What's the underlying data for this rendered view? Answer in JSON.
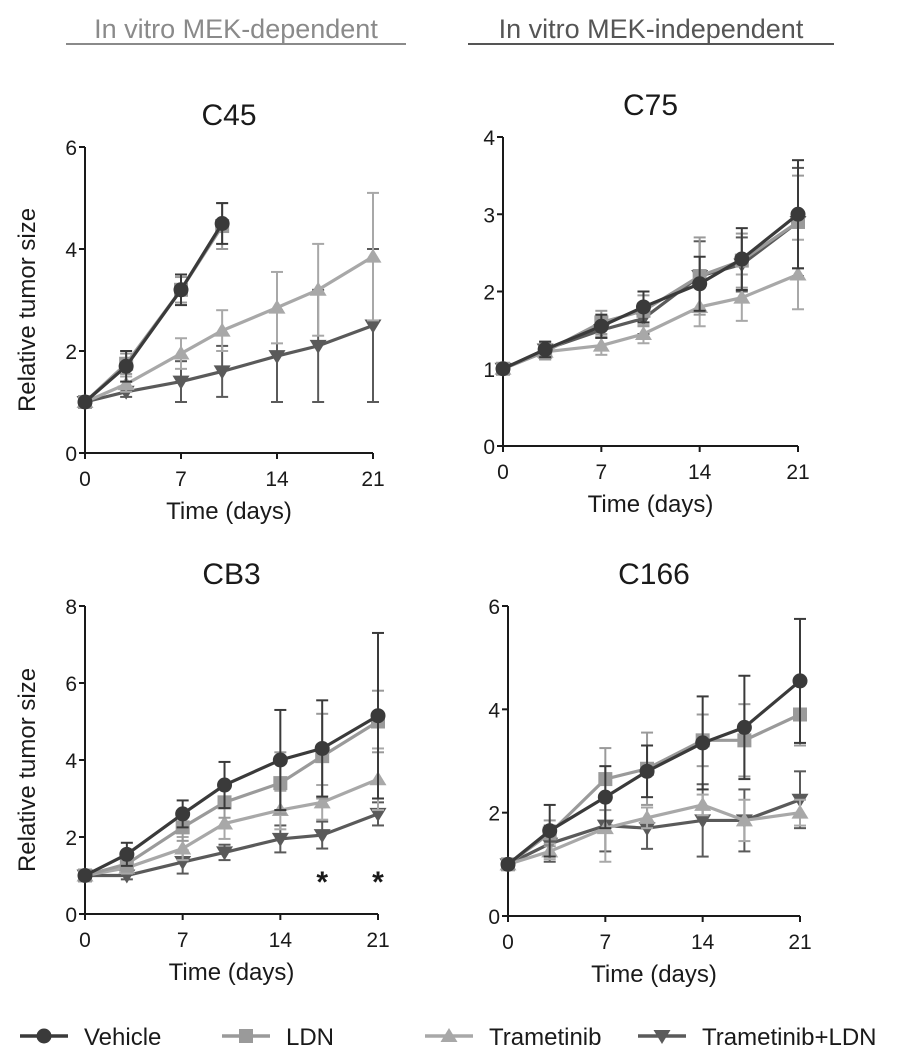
{
  "headers": {
    "left": "In vitro MEK-dependent",
    "right": "In vitro MEK-independent"
  },
  "legend": [
    {
      "name": "Vehicle",
      "color": "#3a3a3a",
      "marker": "circle"
    },
    {
      "name": "LDN",
      "color": "#9a9a9a",
      "marker": "square"
    },
    {
      "name": "Trametinib",
      "color": "#a8a8a8",
      "marker": "triangle-up"
    },
    {
      "name": "Trametinib+LDN",
      "color": "#5a5a5a",
      "marker": "triangle-down"
    }
  ],
  "chart_data": [
    {
      "type": "line",
      "title": "C45",
      "xlabel": "Time (days)",
      "ylabel": "Relative tumor size",
      "xlim": [
        0,
        21
      ],
      "ylim": [
        0,
        6
      ],
      "xticks": [
        0,
        7,
        14,
        21
      ],
      "yticks": [
        0,
        2,
        4,
        6
      ],
      "series": [
        {
          "name": "Vehicle",
          "x": [
            0,
            3,
            7,
            10
          ],
          "y": [
            1.0,
            1.7,
            3.2,
            4.5
          ],
          "err": [
            0.05,
            0.3,
            0.3,
            0.4
          ]
        },
        {
          "name": "LDN",
          "x": [
            0,
            3,
            7,
            10
          ],
          "y": [
            1.0,
            1.75,
            3.2,
            4.45
          ],
          "err": [
            0.05,
            0.2,
            0.25,
            0.45
          ]
        },
        {
          "name": "Trametinib",
          "x": [
            0,
            3,
            7,
            10,
            14,
            17,
            21
          ],
          "y": [
            1.0,
            1.35,
            1.95,
            2.4,
            2.85,
            3.2,
            3.85
          ],
          "err": [
            0.05,
            0.15,
            0.3,
            0.4,
            0.7,
            0.9,
            1.25
          ]
        },
        {
          "name": "Trametinib+LDN",
          "x": [
            0,
            3,
            7,
            10,
            14,
            17,
            21
          ],
          "y": [
            1.0,
            1.2,
            1.4,
            1.6,
            1.9,
            2.1,
            2.5
          ],
          "err": [
            0.05,
            0.1,
            0.4,
            0.5,
            0.9,
            1.1,
            1.5
          ]
        }
      ]
    },
    {
      "type": "line",
      "title": "C75",
      "xlabel": "Time (days)",
      "ylabel": "",
      "xlim": [
        0,
        21
      ],
      "ylim": [
        0,
        4
      ],
      "xticks": [
        0,
        7,
        14,
        21
      ],
      "yticks": [
        0,
        1,
        2,
        3,
        4
      ],
      "series": [
        {
          "name": "Vehicle",
          "x": [
            0,
            3,
            7,
            10,
            14,
            17,
            21
          ],
          "y": [
            1.0,
            1.25,
            1.55,
            1.8,
            2.1,
            2.42,
            3.0
          ],
          "err": [
            0.03,
            0.1,
            0.15,
            0.2,
            0.35,
            0.4,
            0.7
          ]
        },
        {
          "name": "LDN",
          "x": [
            0,
            3,
            7,
            10,
            14,
            17,
            21
          ],
          "y": [
            1.0,
            1.22,
            1.6,
            1.75,
            2.2,
            2.4,
            2.9
          ],
          "err": [
            0.03,
            0.1,
            0.15,
            0.2,
            0.5,
            0.35,
            0.6
          ]
        },
        {
          "name": "Trametinib",
          "x": [
            0,
            3,
            7,
            10,
            14,
            17,
            21
          ],
          "y": [
            1.0,
            1.22,
            1.3,
            1.45,
            1.8,
            1.92,
            2.22
          ],
          "err": [
            0.03,
            0.1,
            0.12,
            0.12,
            0.25,
            0.3,
            0.45
          ]
        },
        {
          "name": "Trametinib+LDN",
          "x": [
            0,
            3,
            7,
            10,
            14,
            17,
            21
          ],
          "y": [
            1.0,
            1.25,
            1.5,
            1.65,
            2.2,
            2.35,
            2.9
          ],
          "err": [
            0.03,
            0.1,
            0.1,
            0.2,
            0.45,
            0.35,
            0.7
          ]
        }
      ]
    },
    {
      "type": "line",
      "title": "CB3",
      "xlabel": "Time (days)",
      "ylabel": "Relative tumor size",
      "xlim": [
        0,
        21
      ],
      "ylim": [
        0,
        8
      ],
      "xticks": [
        0,
        7,
        14,
        21
      ],
      "yticks": [
        0,
        2,
        4,
        6,
        8
      ],
      "annotations": [
        {
          "text": "*",
          "x": 17
        },
        {
          "text": "*",
          "x": 21
        }
      ],
      "series": [
        {
          "name": "Vehicle",
          "x": [
            0,
            3,
            7,
            10,
            14,
            17,
            21
          ],
          "y": [
            1.0,
            1.55,
            2.6,
            3.35,
            4.0,
            4.3,
            5.15
          ],
          "err": [
            0.05,
            0.3,
            0.35,
            0.6,
            1.3,
            1.25,
            2.15
          ]
        },
        {
          "name": "LDN",
          "x": [
            0,
            3,
            7,
            10,
            14,
            17,
            21
          ],
          "y": [
            1.0,
            1.3,
            2.25,
            2.9,
            3.4,
            4.1,
            5.0
          ],
          "err": [
            0.05,
            0.2,
            0.35,
            0.4,
            0.8,
            1.1,
            0.8
          ]
        },
        {
          "name": "Trametinib",
          "x": [
            0,
            3,
            7,
            10,
            14,
            17,
            21
          ],
          "y": [
            1.0,
            1.2,
            1.7,
            2.35,
            2.7,
            2.9,
            3.5
          ],
          "err": [
            0.05,
            0.15,
            0.3,
            0.4,
            0.5,
            0.45,
            0.8
          ]
        },
        {
          "name": "Trametinib+LDN",
          "x": [
            0,
            3,
            7,
            10,
            14,
            17,
            21
          ],
          "y": [
            1.0,
            1.0,
            1.35,
            1.6,
            1.95,
            2.05,
            2.6
          ],
          "err": [
            0.05,
            0.1,
            0.3,
            0.2,
            0.35,
            0.35,
            0.3
          ]
        }
      ]
    },
    {
      "type": "line",
      "title": "C166",
      "xlabel": "Time (days)",
      "ylabel": "",
      "xlim": [
        0,
        21
      ],
      "ylim": [
        0,
        6
      ],
      "xticks": [
        0,
        7,
        14,
        21
      ],
      "yticks": [
        0,
        2,
        4,
        6
      ],
      "series": [
        {
          "name": "Vehicle",
          "x": [
            0,
            3,
            7,
            10,
            14,
            17,
            21
          ],
          "y": [
            1.0,
            1.65,
            2.3,
            2.8,
            3.35,
            3.65,
            4.55
          ],
          "err": [
            0.05,
            0.5,
            0.6,
            0.5,
            0.9,
            1.0,
            1.2
          ]
        },
        {
          "name": "LDN",
          "x": [
            0,
            3,
            7,
            10,
            14,
            17,
            21
          ],
          "y": [
            1.0,
            1.6,
            2.65,
            2.85,
            3.4,
            3.4,
            3.9
          ],
          "err": [
            0.05,
            0.25,
            0.6,
            0.7,
            0.5,
            0.7,
            0.6
          ]
        },
        {
          "name": "Trametinib",
          "x": [
            0,
            3,
            7,
            10,
            14,
            17,
            21
          ],
          "y": [
            1.0,
            1.25,
            1.7,
            1.9,
            2.15,
            1.85,
            2.0
          ],
          "err": [
            0.05,
            0.15,
            0.65,
            0.2,
            0.2,
            0.4,
            0.25
          ]
        },
        {
          "name": "Trametinib+LDN",
          "x": [
            0,
            3,
            7,
            10,
            14,
            17,
            21
          ],
          "y": [
            1.0,
            1.4,
            1.75,
            1.7,
            1.85,
            1.85,
            2.25
          ],
          "err": [
            0.05,
            0.35,
            0.5,
            0.4,
            0.7,
            0.6,
            0.55
          ]
        }
      ]
    }
  ]
}
